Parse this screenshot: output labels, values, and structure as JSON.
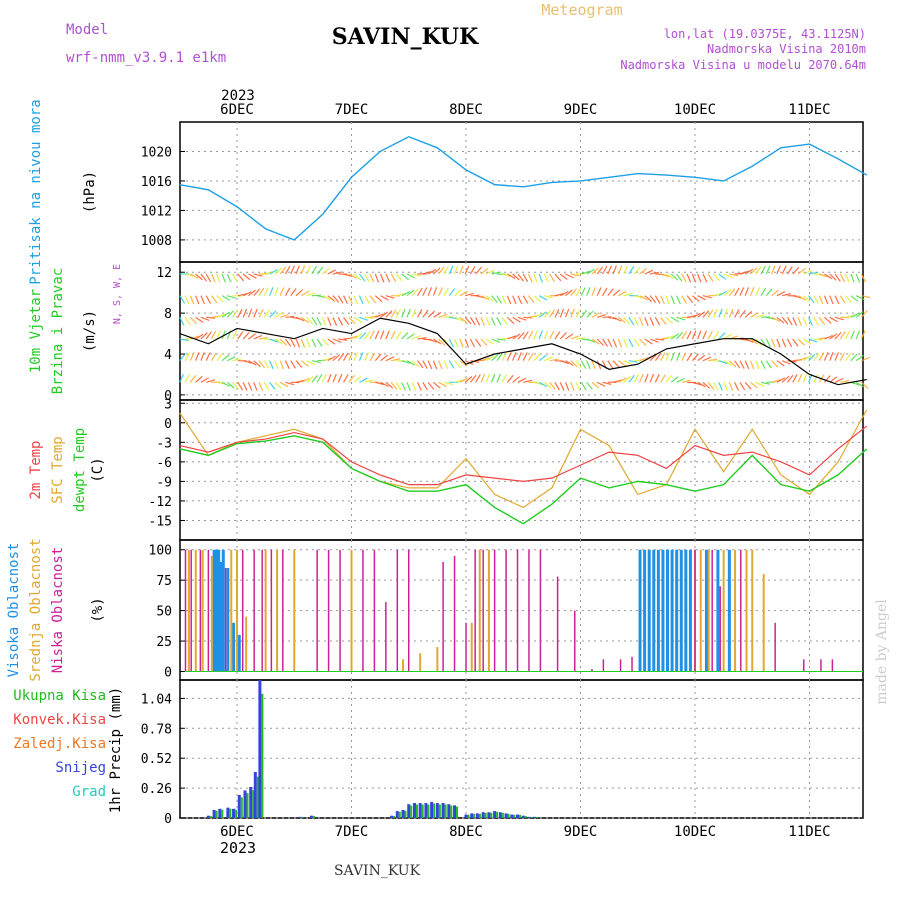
{
  "header": {
    "model_label": "Model",
    "model_value": "wrf-nmm_v3.9.1  e1km",
    "station": "SAVIN_KUK",
    "meteogram_label": "Meteogram",
    "lonlat": "lon,lat (19.0375E, 43.1125N)",
    "elevation": "Nadmorska Visina 2010m",
    "model_elevation": "Nadmorska Visina u modelu 2070.64m",
    "year_top": "2023"
  },
  "footer": {
    "station": "SAVIN_KUK",
    "year_bottom": "2023",
    "watermark": "made by Angel"
  },
  "colors": {
    "pressure": "#1ea0e6",
    "temp2m": "#ee4444",
    "sfc_temp": "#e0a830",
    "dewpt": "#22cc22",
    "high_cloud": "#1e90e6",
    "mid_cloud": "#e0a830",
    "low_cloud": "#cc2299",
    "total_rain": "#22bb22",
    "snow": "#3344dd",
    "wind_speed_line": "#000000",
    "gust_marks": "#ee3333"
  },
  "x_axis": {
    "day_ticks": [
      "6DEC",
      "7DEC",
      "8DEC",
      "9DEC",
      "10DEC",
      "11DEC"
    ],
    "start": "2023-12-05 12:00",
    "end": "2023-12-11 12:00"
  },
  "chart_data": [
    {
      "type": "line",
      "id": "pressure",
      "ylabel_line1": "Pritisak na nivou mora",
      "ylabel_units": "(hPa)",
      "ylim": [
        1005,
        1024
      ],
      "yticks": [
        1008,
        1012,
        1016,
        1020
      ],
      "grid": true,
      "x": [
        0,
        0.25,
        0.5,
        0.75,
        1.0,
        1.25,
        1.5,
        1.75,
        2.0,
        2.25,
        2.5,
        2.75,
        3.0,
        3.25,
        3.5,
        3.75,
        4.0,
        4.25,
        4.5,
        4.75,
        5.0,
        5.25,
        5.5,
        5.75,
        6.0
      ],
      "series": [
        {
          "values": [
            1015.5,
            1014.8,
            1012.5,
            1009.5,
            1008.0,
            1011.5,
            1016.5,
            1020.0,
            1022.0,
            1020.5,
            1017.5,
            1015.5,
            1015.2,
            1015.8,
            1016.0,
            1016.5,
            1017.0,
            1016.8,
            1016.5,
            1016.0,
            1018.0,
            1020.5,
            1021.0,
            1019.0,
            1016.8
          ]
        }
      ]
    },
    {
      "type": "line",
      "id": "wind",
      "ylabel_line1": "10m Vjetar",
      "ylabel_line2": "Brzina i Pravac",
      "ylabel_units": "(m/s)",
      "compass": "N, S, W, E",
      "ylim": [
        -0.5,
        13
      ],
      "yticks": [
        0,
        4,
        8,
        12
      ],
      "grid": true,
      "x": [
        0,
        0.25,
        0.5,
        0.75,
        1.0,
        1.25,
        1.5,
        1.75,
        2.0,
        2.25,
        2.5,
        2.75,
        3.0,
        3.25,
        3.5,
        3.75,
        4.0,
        4.25,
        4.5,
        4.75,
        5.0,
        5.25,
        5.5,
        5.75,
        6.0
      ],
      "series": [
        {
          "values": [
            6.0,
            5.0,
            6.5,
            6.0,
            5.5,
            6.5,
            6.0,
            7.5,
            7.0,
            6.0,
            3.0,
            4.0,
            4.5,
            5.0,
            4.0,
            2.5,
            3.0,
            4.5,
            5.0,
            5.5,
            5.5,
            4.0,
            2.0,
            1.0,
            1.5
          ]
        }
      ]
    },
    {
      "type": "line",
      "id": "temperature",
      "ylabel_line1": "2m Temp",
      "ylabel_line2": "SFC Temp",
      "ylabel_line3": "dewpt Temp",
      "ylabel_units": "(C)",
      "ylim": [
        -18,
        3.5
      ],
      "yticks": [
        -15,
        -12,
        -9,
        -6,
        -3,
        0,
        3
      ],
      "grid": true,
      "x": [
        0,
        0.25,
        0.5,
        0.75,
        1.0,
        1.25,
        1.5,
        1.75,
        2.0,
        2.25,
        2.5,
        2.75,
        3.0,
        3.25,
        3.5,
        3.75,
        4.0,
        4.25,
        4.5,
        4.75,
        5.0,
        5.25,
        5.5,
        5.75,
        6.0
      ],
      "series": [
        {
          "name": "2m Temp",
          "values": [
            -3.5,
            -4.5,
            -3.0,
            -2.5,
            -1.5,
            -2.5,
            -6.0,
            -8.0,
            -9.5,
            -9.5,
            -8.0,
            -8.5,
            -9.0,
            -8.5,
            -6.5,
            -4.5,
            -5.0,
            -7.0,
            -3.5,
            -5.0,
            -4.5,
            -6.0,
            -8.0,
            -4.0,
            -0.5
          ]
        },
        {
          "name": "SFC Temp",
          "values": [
            1.5,
            -5.0,
            -3.0,
            -2.0,
            -1.0,
            -2.5,
            -7.0,
            -9.0,
            -10.0,
            -10.0,
            -5.5,
            -11.0,
            -13.0,
            -10.0,
            -1.0,
            -3.5,
            -11.0,
            -9.5,
            -1.0,
            -7.5,
            -1.0,
            -8.0,
            -11.0,
            -6.0,
            2.0
          ]
        },
        {
          "name": "dewpt Temp",
          "values": [
            -4.0,
            -5.0,
            -3.2,
            -2.8,
            -2.0,
            -3.0,
            -7.0,
            -9.0,
            -10.5,
            -10.5,
            -9.5,
            -13.0,
            -15.5,
            -12.5,
            -8.5,
            -10.0,
            -9.0,
            -9.5,
            -10.5,
            -9.5,
            -5.0,
            -9.5,
            -10.5,
            -8.0,
            -4.0
          ]
        }
      ]
    },
    {
      "type": "bar",
      "id": "clouds",
      "ylabel_line1": "Visoka Oblacnost",
      "ylabel_line2": "Srednja Oblacnost",
      "ylabel_line3": "Niska Oblacnost",
      "ylabel_units": "(%)",
      "ylim": [
        -7,
        108
      ],
      "yticks": [
        0,
        25,
        50,
        75,
        100
      ],
      "grid": true,
      "series": [
        {
          "name": "Visoka Oblacnost",
          "x": [
            0.3,
            0.32,
            0.34,
            0.36,
            0.38,
            0.42,
            0.47,
            0.52,
            4.02,
            4.06,
            4.1,
            4.14,
            4.18,
            4.22,
            4.26,
            4.3,
            4.34,
            4.38,
            4.42,
            4.46,
            4.6,
            4.7,
            4.8
          ],
          "values": [
            100,
            100,
            100,
            90,
            100,
            85,
            40,
            30,
            100,
            100,
            100,
            100,
            100,
            100,
            100,
            100,
            100,
            100,
            100,
            100,
            100,
            100,
            100
          ]
        },
        {
          "name": "Srednja Oblacnost",
          "x": [
            0.08,
            0.14,
            0.2,
            0.28,
            0.45,
            0.5,
            0.58,
            0.75,
            0.85,
            1.0,
            1.5,
            1.95,
            2.1,
            2.25,
            2.55,
            2.62,
            2.7,
            4.5,
            4.55,
            4.62,
            4.75,
            4.85,
            4.95,
            5.0,
            5.1
          ],
          "values": [
            100,
            100,
            100,
            95,
            100,
            100,
            45,
            100,
            100,
            100,
            100,
            10,
            15,
            20,
            40,
            100,
            100,
            100,
            100,
            100,
            100,
            100,
            100,
            100,
            80
          ]
        },
        {
          "name": "Niska Oblacnost",
          "x": [
            0.05,
            0.1,
            0.18,
            0.25,
            0.4,
            0.55,
            0.65,
            0.72,
            0.8,
            0.9,
            1.2,
            1.3,
            1.4,
            1.6,
            1.7,
            1.8,
            1.9,
            2.0,
            2.3,
            2.4,
            2.5,
            2.58,
            2.65,
            2.75,
            2.85,
            2.95,
            3.05,
            3.15,
            3.3,
            3.45,
            3.6,
            3.7,
            3.85,
            3.95,
            4.5,
            4.65,
            4.72,
            4.9,
            5.2,
            5.45,
            5.6,
            5.7
          ],
          "values": [
            100,
            100,
            100,
            100,
            85,
            100,
            100,
            100,
            100,
            100,
            100,
            100,
            100,
            100,
            100,
            57,
            100,
            100,
            90,
            95,
            40,
            100,
            100,
            100,
            100,
            100,
            100,
            100,
            78,
            50,
            2,
            10,
            10,
            12,
            100,
            100,
            70,
            100,
            40,
            10,
            10,
            10
          ]
        }
      ]
    },
    {
      "type": "bar",
      "id": "precip",
      "ylabel": "1hr Precip (mm)",
      "legend": [
        "Ukupna Kisa",
        "Konvek.Kisa",
        "Zaledj.Kisa",
        "Snijeg",
        "Grad"
      ],
      "ylim": [
        0,
        1.2
      ],
      "yticks": [
        0,
        0.26,
        0.52,
        0.78,
        1.04
      ],
      "grid": true,
      "series": [
        {
          "name": "Snijeg",
          "x": [
            0.25,
            0.3,
            0.35,
            0.42,
            0.47,
            0.52,
            0.57,
            0.62,
            0.66,
            0.7,
            1.05,
            1.15,
            1.85,
            1.9,
            1.95,
            2.0,
            2.05,
            2.1,
            2.15,
            2.2,
            2.25,
            2.3,
            2.35,
            2.4,
            2.5,
            2.55,
            2.6,
            2.65,
            2.7,
            2.75,
            2.8,
            2.85,
            2.9,
            2.95,
            3.0,
            3.05,
            3.1
          ],
          "values": [
            0.02,
            0.07,
            0.08,
            0.09,
            0.08,
            0.2,
            0.24,
            0.27,
            0.4,
            1.2,
            0.01,
            0.02,
            0.02,
            0.06,
            0.07,
            0.12,
            0.13,
            0.13,
            0.13,
            0.14,
            0.13,
            0.13,
            0.12,
            0.11,
            0.03,
            0.04,
            0.04,
            0.05,
            0.05,
            0.06,
            0.05,
            0.04,
            0.03,
            0.03,
            0.02,
            0.01,
            0.01
          ]
        }
      ]
    }
  ]
}
